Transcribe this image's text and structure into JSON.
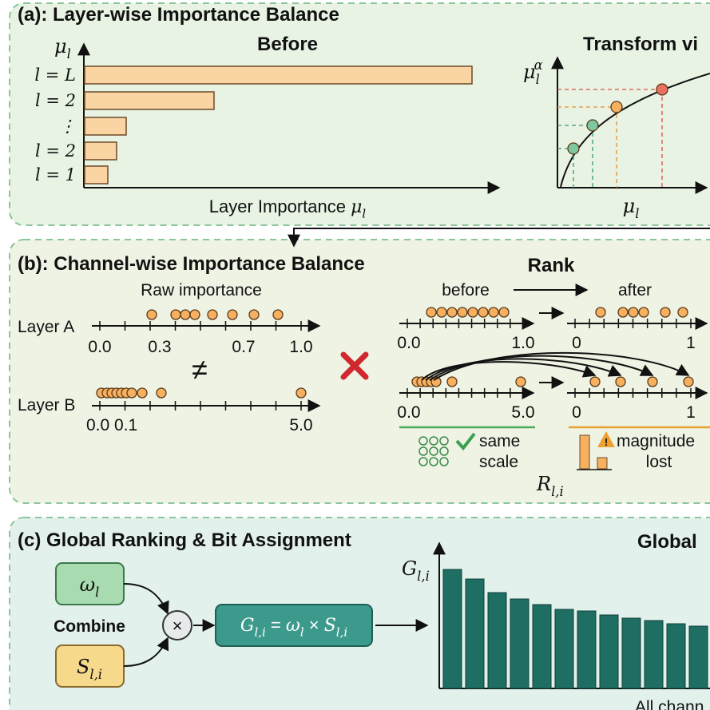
{
  "panel_a": {
    "title": "(a): Layer-wise Importance Balance",
    "before_title": "Before",
    "y_label": {
      "base": "μ",
      "sub": "l"
    },
    "bar_labels": [
      "l = L",
      "l = 2",
      "⋮",
      "l = 2",
      "l = 1"
    ],
    "x_label": {
      "text": "Layer Importance ",
      "base": "μ",
      "sub": "l"
    },
    "transform_title": "Transform vi",
    "transform_y_label": {
      "base": "μ",
      "sub": "l",
      "sup": "α"
    },
    "transform_x_label": {
      "base": "μ",
      "sub": "l"
    }
  },
  "panel_b": {
    "title": "(b): Channel-wise Importance Balance",
    "raw_title": "Raw importance",
    "layer_a": {
      "label": "Layer A",
      "ticks": [
        "0.0",
        "0.3",
        "0.7",
        "1.0"
      ]
    },
    "not_equal": "≠",
    "layer_b": {
      "label": "Layer B",
      "ticks": [
        "0.0 0.1",
        "5.0"
      ]
    },
    "rank_title": "Rank",
    "before": "before",
    "after": "after",
    "top_ticks": [
      "0.0",
      "1.0",
      "0",
      "1"
    ],
    "bottom_ticks": [
      "0.0",
      "5.0",
      "0",
      "1"
    ],
    "same_scale": [
      "same",
      "scale"
    ],
    "magnitude_lost": [
      "magnitude",
      "lost"
    ],
    "rank_symbol": {
      "base": "R",
      "sub": "l,i"
    }
  },
  "panel_c": {
    "title": "(c) Global Ranking & Bit Assignment",
    "omega": {
      "base": "ω",
      "sub": "l"
    },
    "combine": "Combine",
    "score": {
      "base": "S",
      "sub": "l,i"
    },
    "times": "×",
    "formula": [
      {
        "base": "G",
        "sub": "l,i"
      },
      {
        "text": " = "
      },
      {
        "base": "ω",
        "sub": "l"
      },
      {
        "text": " × "
      },
      {
        "base": "S",
        "sub": "l,i"
      }
    ],
    "y_label": {
      "base": "G",
      "sub": "l,i"
    },
    "chart_title": "Global",
    "x_label": "All chann"
  }
}
